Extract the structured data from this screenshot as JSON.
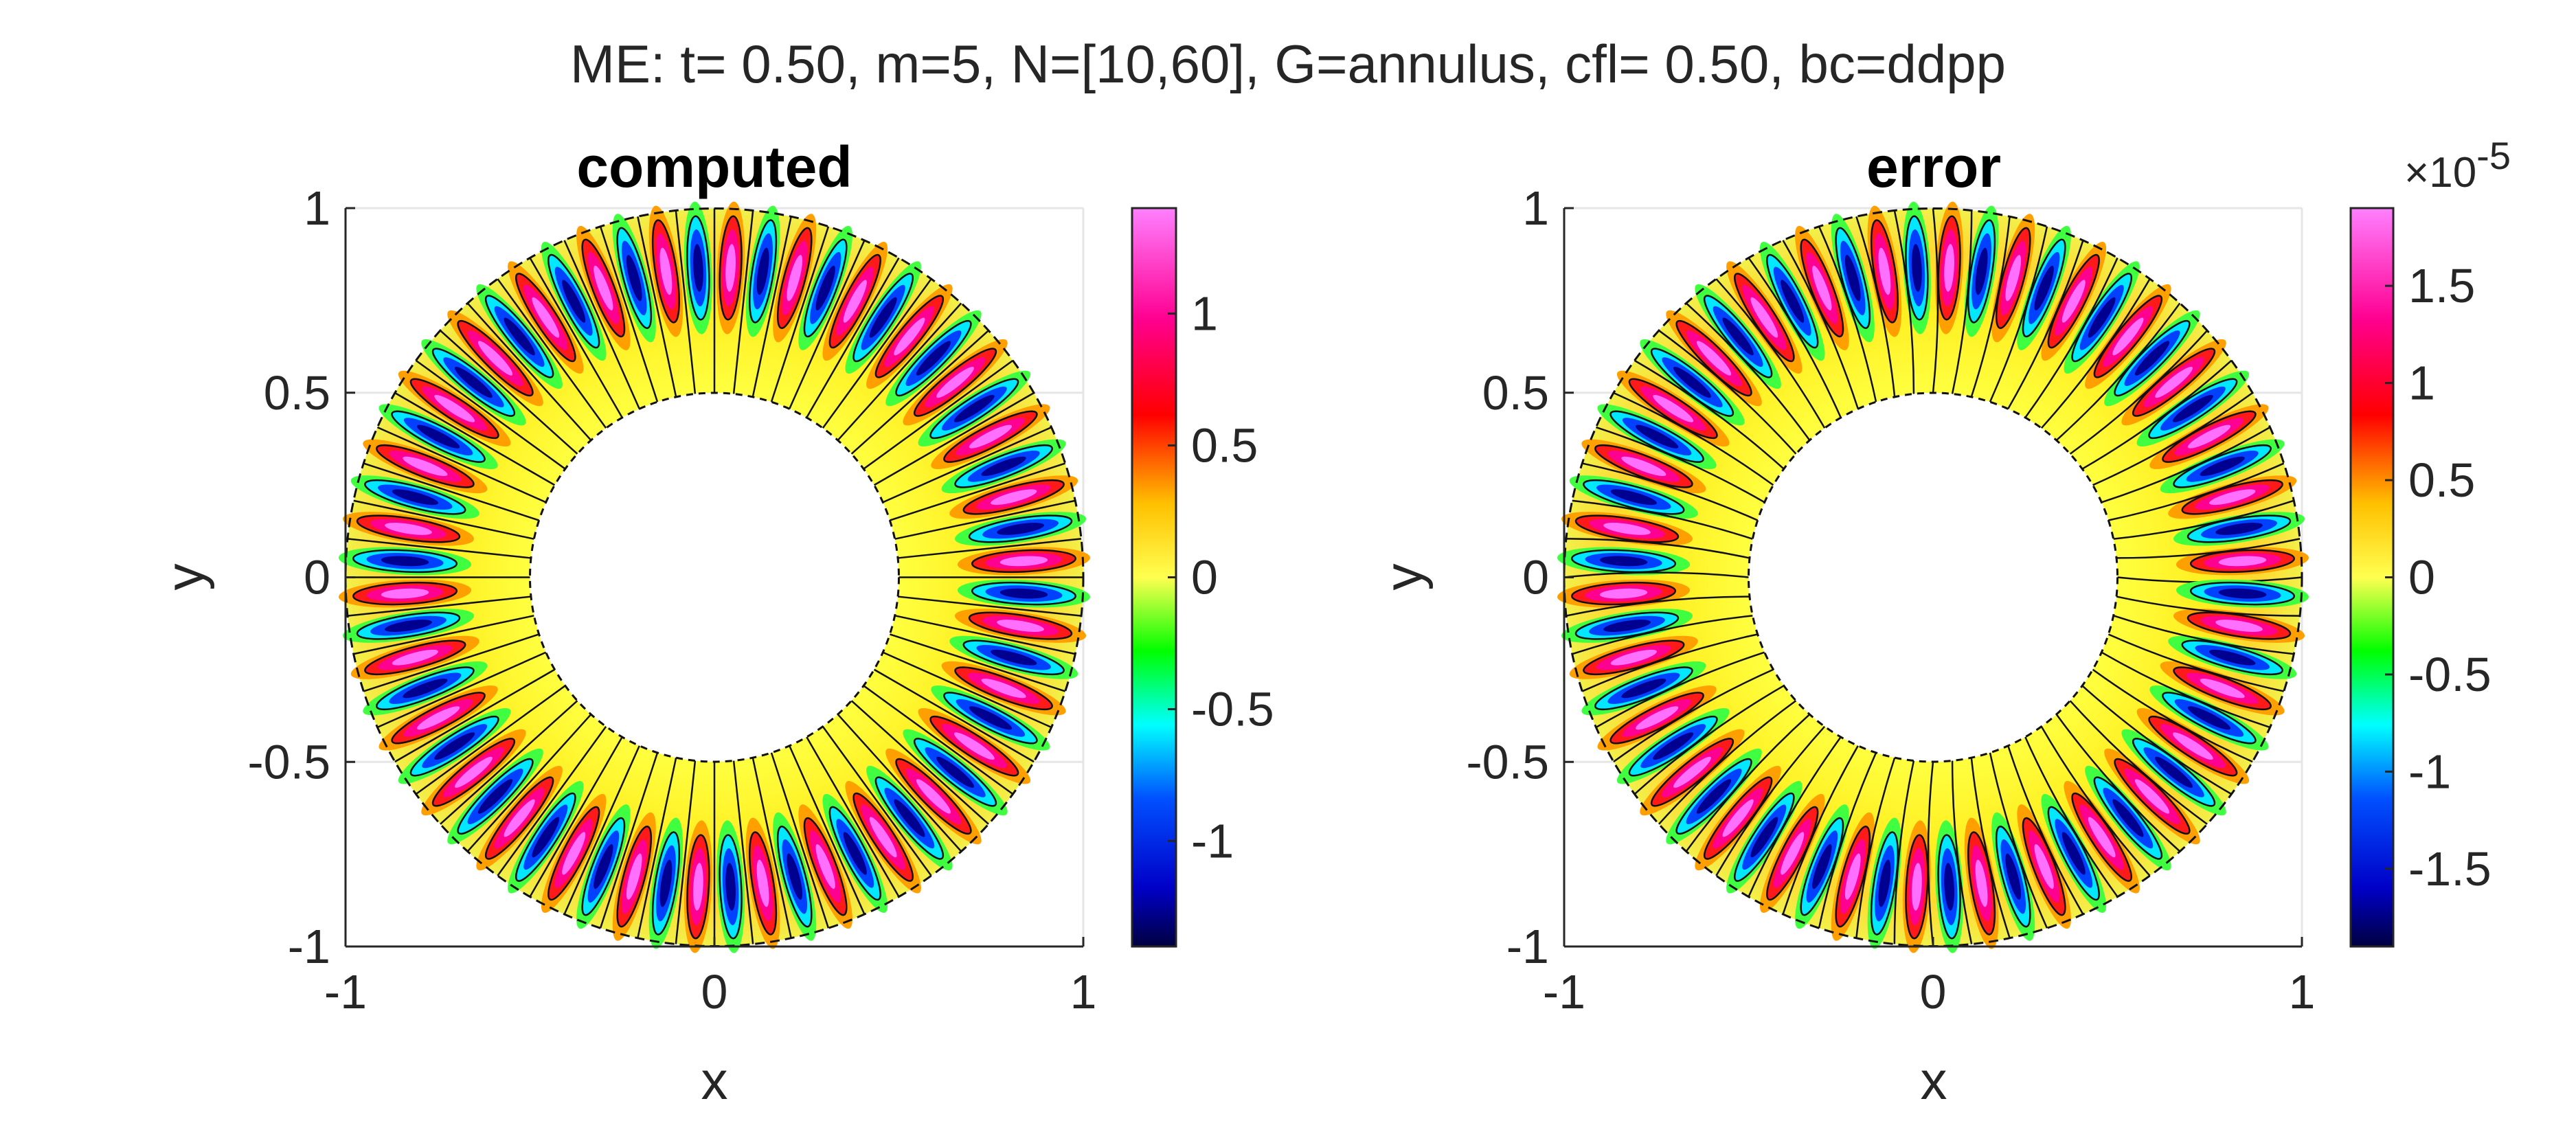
{
  "figure": {
    "suptitle": "ME: t= 0.50, m=5, N=[10,60], G=annulus, cfl= 0.50, bc=ddpp"
  },
  "chart_data": [
    {
      "type": "heatmap",
      "title": "computed",
      "xlabel": "x",
      "ylabel": "y",
      "xlim": [
        -1,
        1
      ],
      "ylim": [
        -1,
        1
      ],
      "xticks": [
        "-1",
        "0",
        "1"
      ],
      "yticks": [
        "1",
        "0.5",
        "0",
        "-0.5",
        "-1"
      ],
      "domain": "annulus",
      "inner_radius": 0.5,
      "outer_radius": 1,
      "angular_lobes": 60,
      "peak_amplitude": 1.4,
      "contours": true,
      "grid": true,
      "colorbar": {
        "colormap": "hsv-like",
        "range": [
          -1.4,
          1.4
        ],
        "ticks": [
          "1",
          "0.5",
          "0",
          "-0.5",
          "-1"
        ],
        "tick_values": [
          1,
          0.5,
          0,
          -0.5,
          -1
        ],
        "exponent_label": ""
      }
    },
    {
      "type": "heatmap",
      "title": "error",
      "xlabel": "x",
      "ylabel": "y",
      "xlim": [
        -1,
        1
      ],
      "ylim": [
        -1,
        1
      ],
      "xticks": [
        "-1",
        "0",
        "1"
      ],
      "yticks": [
        "1",
        "0.5",
        "0",
        "-0.5",
        "-1"
      ],
      "domain": "annulus",
      "inner_radius": 0.5,
      "outer_radius": 1,
      "angular_lobes": 60,
      "peak_amplitude": 1.9e-05,
      "contours": true,
      "grid": true,
      "colorbar": {
        "colormap": "hsv-like",
        "range": [
          -1.9e-05,
          1.9e-05
        ],
        "ticks": [
          "1.5",
          "1",
          "0.5",
          "0",
          "-0.5",
          "-1",
          "-1.5"
        ],
        "tick_values": [
          1.5,
          1,
          0.5,
          0,
          -0.5,
          -1,
          -1.5
        ],
        "exponent_label": "×10",
        "exponent_power": "-5"
      }
    }
  ]
}
